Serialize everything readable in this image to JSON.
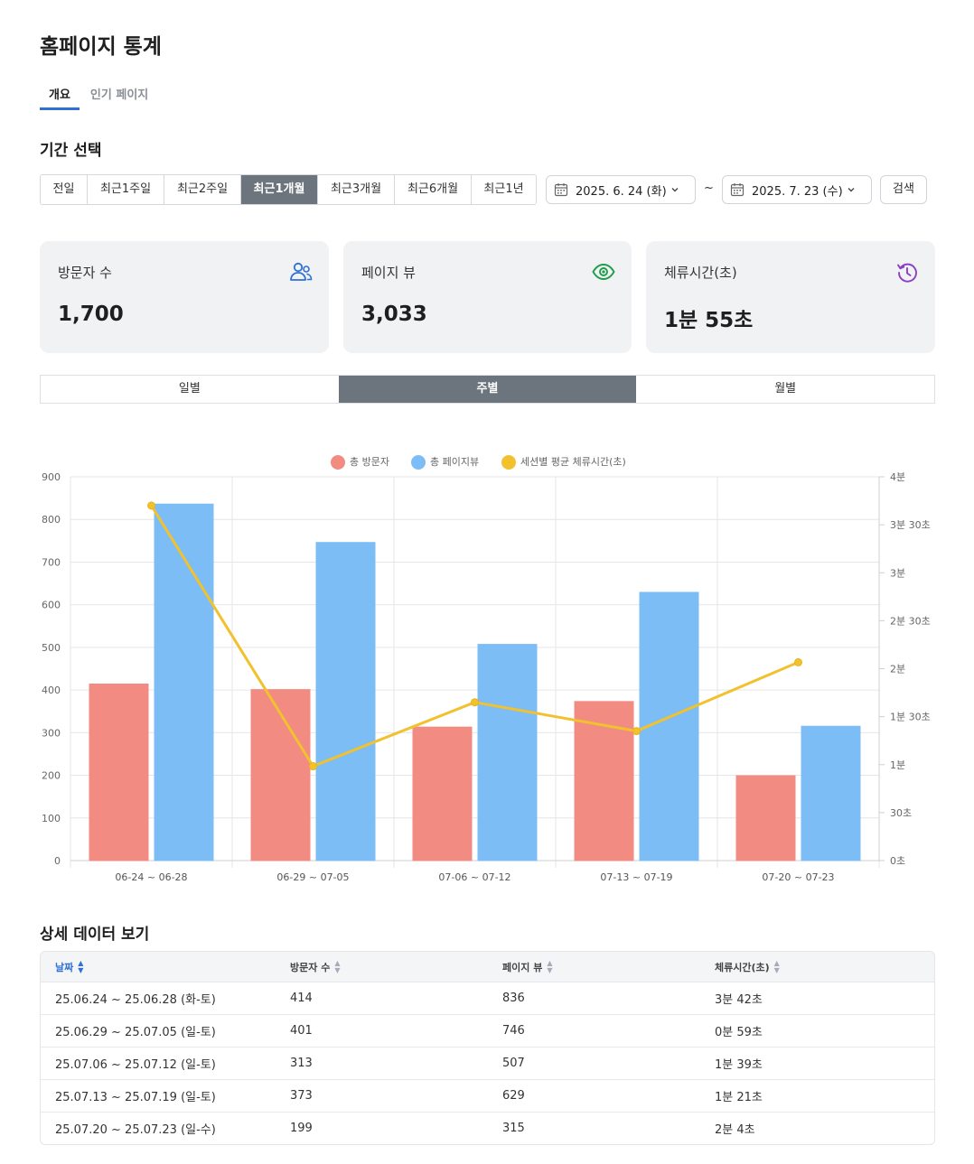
{
  "page": {
    "title": "홈페이지 통계"
  },
  "tabs": [
    {
      "label": "개요",
      "active": true
    },
    {
      "label": "인기 페이지",
      "active": false
    }
  ],
  "period": {
    "title": "기간 선택",
    "buttons": [
      {
        "label": "전일",
        "active": false
      },
      {
        "label": "최근1주일",
        "active": false
      },
      {
        "label": "최근2주일",
        "active": false
      },
      {
        "label": "최근1개월",
        "active": true
      },
      {
        "label": "최근3개월",
        "active": false
      },
      {
        "label": "최근6개월",
        "active": false
      },
      {
        "label": "최근1년",
        "active": false
      }
    ],
    "start_date": "2025. 6. 24 (화)",
    "separator": "~",
    "end_date": "2025. 7. 23 (수)",
    "search_label": "검색"
  },
  "cards": [
    {
      "label": "방문자 수",
      "value": "1,700",
      "icon": "users-icon",
      "color": "#2f6fd6"
    },
    {
      "label": "페이지 뷰",
      "value": "3,033",
      "icon": "eye-icon",
      "color": "#1e9e4a"
    },
    {
      "label": "체류시간(초)",
      "value": "1분 55초",
      "icon": "history-icon",
      "color": "#8b3fc6"
    }
  ],
  "view_toggle": [
    {
      "label": "일별",
      "active": false
    },
    {
      "label": "주별",
      "active": true
    },
    {
      "label": "월별",
      "active": false
    }
  ],
  "chart_data": {
    "type": "bar",
    "categories": [
      "06-24 ~ 06-28",
      "06-29 ~ 07-05",
      "07-06 ~ 07-12",
      "07-13 ~ 07-19",
      "07-20 ~ 07-23"
    ],
    "series": [
      {
        "name": "총 방문자",
        "type": "bar",
        "axis": "left",
        "color": "#f28b82",
        "values": [
          414,
          401,
          313,
          373,
          199
        ]
      },
      {
        "name": "총 페이지뷰",
        "type": "bar",
        "axis": "left",
        "color": "#7cbdf5",
        "values": [
          836,
          746,
          507,
          629,
          315
        ]
      },
      {
        "name": "세션별 평균 체류시간(초)",
        "type": "line",
        "axis": "right",
        "color": "#f2c12e",
        "values": [
          222,
          59,
          99,
          81,
          124
        ]
      }
    ],
    "left_axis": {
      "min": 0,
      "max": 900,
      "ticks": [
        "900",
        "800",
        "700",
        "600",
        "500",
        "400",
        "300",
        "200",
        "100",
        "0"
      ]
    },
    "right_axis": {
      "min": 0,
      "max": 240,
      "ticks": [
        "4분",
        "3분 30초",
        "3분",
        "2분 30초",
        "2분",
        "1분 30초",
        "1분",
        "30초",
        "0초"
      ]
    },
    "legend_position": "top-center",
    "grid": true
  },
  "detail": {
    "title": "상세 데이터 보기",
    "headers": [
      "날짜",
      "방문자 수",
      "페이지 뷰",
      "체류시간(초)"
    ],
    "rows": [
      [
        "25.06.24 ~ 25.06.28 (화-토)",
        "414",
        "836",
        "3분 42초"
      ],
      [
        "25.06.29 ~ 25.07.05 (일-토)",
        "401",
        "746",
        "0분 59초"
      ],
      [
        "25.07.06 ~ 25.07.12 (일-토)",
        "313",
        "507",
        "1분 39초"
      ],
      [
        "25.07.13 ~ 25.07.19 (일-토)",
        "373",
        "629",
        "1분 21초"
      ],
      [
        "25.07.20 ~ 25.07.23 (일-수)",
        "199",
        "315",
        "2분 4초"
      ]
    ]
  }
}
